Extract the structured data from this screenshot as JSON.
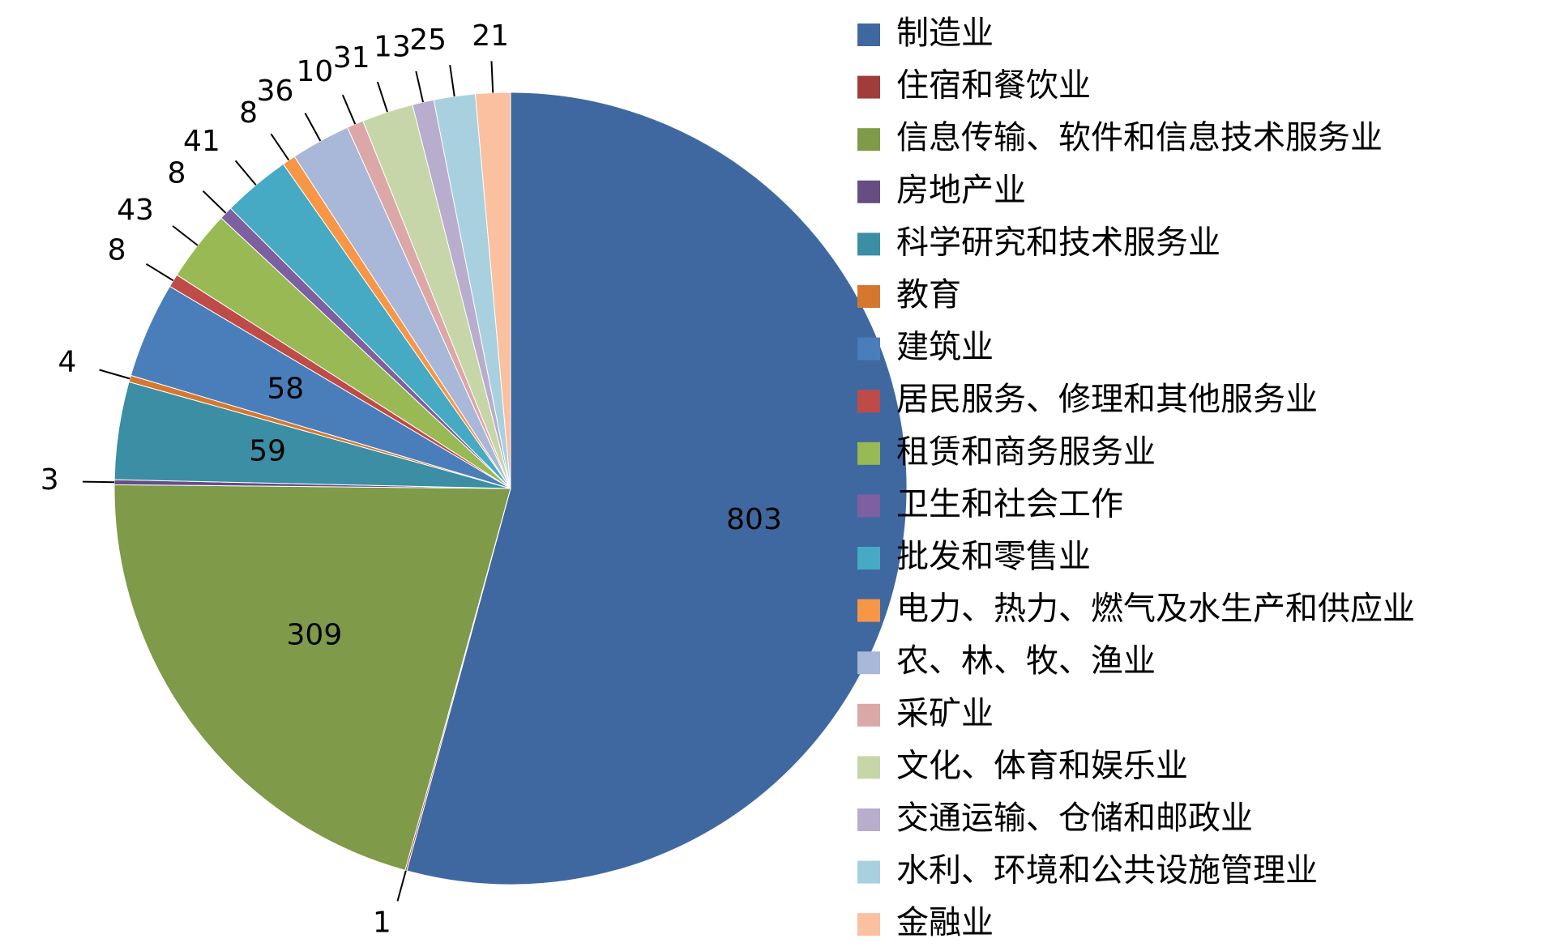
{
  "chart_data": {
    "type": "pie",
    "categories": [
      "制造业",
      "住宿和餐饮业",
      "信息传输、软件和信息技术服务业",
      "房地产业",
      "科学研究和技术服务业",
      "教育",
      "建筑业",
      "居民服务、修理和其他服务业",
      "租赁和商务服务业",
      "卫生和社会工作",
      "批发和零售业",
      "电力、热力、燃气及水生产和供应业",
      "农、林、牧、渔业",
      "采矿业",
      "文化、体育和娱乐业",
      "交通运输、仓储和邮政业",
      "水利、环境和公共设施管理业",
      "金融业"
    ],
    "values": [
      803,
      1,
      309,
      3,
      59,
      4,
      58,
      8,
      43,
      8,
      41,
      8,
      36,
      10,
      31,
      13,
      25,
      21
    ],
    "colors": [
      "#4068a0",
      "#a03c3a",
      "#7f9a48",
      "#664d84",
      "#3b8ea3",
      "#d4782f",
      "#4a7ebb",
      "#be4b48",
      "#98b954",
      "#7d60a0",
      "#46aac5",
      "#f79646",
      "#a9b8d8",
      "#dba8a7",
      "#c6d6a8",
      "#b8adcc",
      "#a9d0de",
      "#fac09f"
    ],
    "legend": "right"
  }
}
